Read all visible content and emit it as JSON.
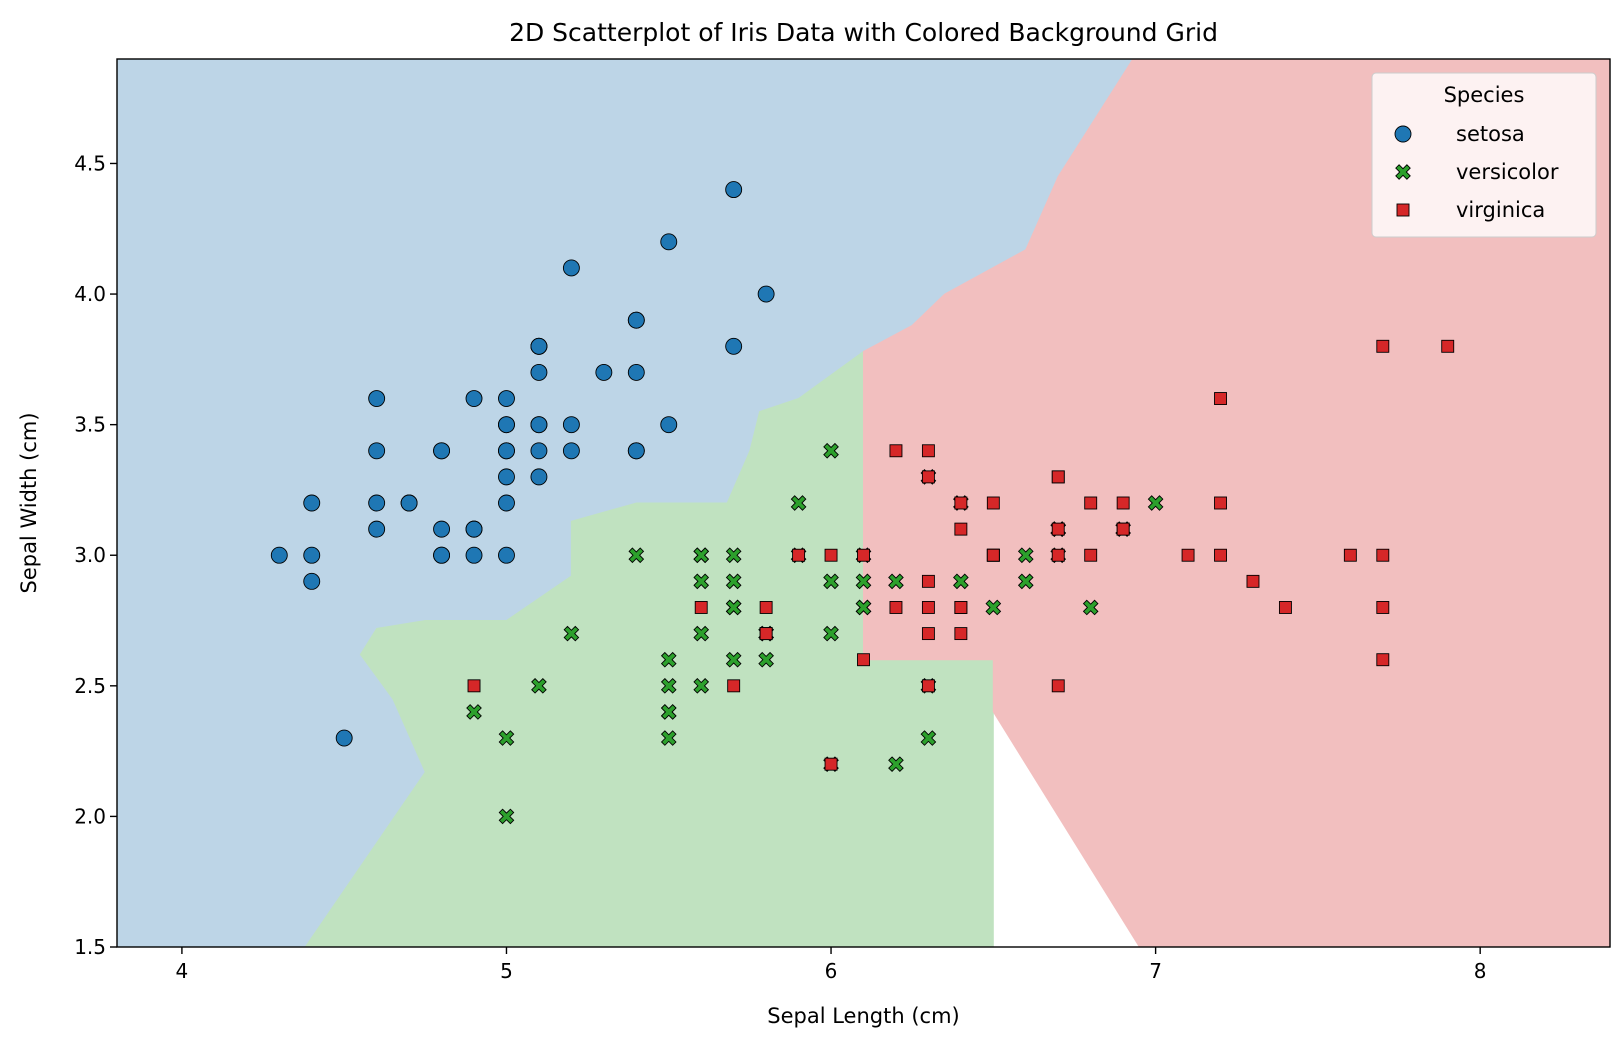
{
  "chart_data": {
    "type": "scatter",
    "title": "2D Scatterplot of Iris Data with Colored Background Grid",
    "xlabel": "Sepal Length (cm)",
    "ylabel": "Sepal Width (cm)",
    "xlim": [
      3.8,
      8.4
    ],
    "ylim": [
      1.5,
      4.9
    ],
    "xticks": [
      4,
      5,
      6,
      7,
      8
    ],
    "xtick_labels": [
      "4",
      "5",
      "6",
      "7",
      "8"
    ],
    "yticks": [
      1.5,
      2.0,
      2.5,
      3.0,
      3.5,
      4.0,
      4.5
    ],
    "ytick_labels": [
      "1.5",
      "2.0",
      "2.5",
      "3.0",
      "3.5",
      "4.0",
      "4.5"
    ],
    "grid": false,
    "legend": {
      "title": "Species",
      "placement": "top-right"
    },
    "background_regions": [
      {
        "class": "setosa",
        "color": "#bdd5e7",
        "polygon": [
          [
            3.8,
            1.5
          ],
          [
            3.8,
            4.9
          ],
          [
            6.93,
            4.9
          ],
          [
            6.7,
            4.45
          ],
          [
            6.6,
            4.17
          ],
          [
            6.35,
            4.0
          ],
          [
            6.25,
            3.88
          ],
          [
            6.1,
            3.78
          ],
          [
            5.9,
            3.6
          ],
          [
            5.78,
            3.55
          ],
          [
            5.75,
            3.4
          ],
          [
            5.68,
            3.2
          ],
          [
            5.4,
            3.2
          ],
          [
            5.2,
            3.13
          ],
          [
            5.2,
            2.92
          ],
          [
            5.0,
            2.75
          ],
          [
            4.75,
            2.75
          ],
          [
            4.6,
            2.72
          ],
          [
            4.55,
            2.62
          ],
          [
            4.65,
            2.45
          ],
          [
            4.75,
            2.17
          ],
          [
            4.38,
            1.5
          ]
        ]
      },
      {
        "class": "versicolor",
        "color": "#c0e2c0",
        "polygon": [
          [
            4.38,
            1.5
          ],
          [
            4.75,
            2.17
          ],
          [
            4.65,
            2.45
          ],
          [
            4.55,
            2.62
          ],
          [
            4.6,
            2.72
          ],
          [
            4.75,
            2.75
          ],
          [
            5.0,
            2.75
          ],
          [
            5.2,
            2.92
          ],
          [
            5.2,
            3.13
          ],
          [
            5.4,
            3.2
          ],
          [
            5.68,
            3.2
          ],
          [
            5.75,
            3.4
          ],
          [
            5.78,
            3.55
          ],
          [
            5.9,
            3.6
          ],
          [
            6.1,
            3.78
          ],
          [
            6.1,
            2.6
          ],
          [
            6.5,
            2.6
          ],
          [
            6.5,
            1.5
          ]
        ]
      },
      {
        "class": "virginica",
        "color": "#f2bfbf",
        "polygon": [
          [
            6.1,
            3.78
          ],
          [
            6.25,
            3.88
          ],
          [
            6.35,
            4.0
          ],
          [
            6.6,
            4.17
          ],
          [
            6.7,
            4.45
          ],
          [
            6.93,
            4.9
          ],
          [
            8.4,
            4.9
          ],
          [
            8.4,
            1.5
          ],
          [
            6.95,
            1.5
          ],
          [
            6.5,
            2.4
          ],
          [
            6.5,
            2.6
          ],
          [
            6.1,
            2.6
          ]
        ]
      }
    ],
    "series": [
      {
        "name": "setosa",
        "marker": "circle",
        "color": "#1f77b4",
        "points": [
          [
            5.1,
            3.5
          ],
          [
            4.9,
            3.0
          ],
          [
            4.7,
            3.2
          ],
          [
            4.6,
            3.1
          ],
          [
            5.0,
            3.6
          ],
          [
            5.4,
            3.9
          ],
          [
            4.6,
            3.4
          ],
          [
            5.0,
            3.4
          ],
          [
            4.4,
            2.9
          ],
          [
            4.9,
            3.1
          ],
          [
            5.4,
            3.7
          ],
          [
            4.8,
            3.4
          ],
          [
            4.8,
            3.0
          ],
          [
            4.3,
            3.0
          ],
          [
            5.8,
            4.0
          ],
          [
            5.7,
            4.4
          ],
          [
            5.4,
            3.9
          ],
          [
            5.1,
            3.5
          ],
          [
            5.7,
            3.8
          ],
          [
            5.1,
            3.8
          ],
          [
            5.4,
            3.4
          ],
          [
            5.1,
            3.7
          ],
          [
            4.6,
            3.6
          ],
          [
            5.1,
            3.3
          ],
          [
            4.8,
            3.4
          ],
          [
            5.0,
            3.0
          ],
          [
            5.0,
            3.4
          ],
          [
            5.2,
            3.5
          ],
          [
            5.2,
            3.4
          ],
          [
            4.7,
            3.2
          ],
          [
            4.8,
            3.1
          ],
          [
            5.4,
            3.4
          ],
          [
            5.2,
            4.1
          ],
          [
            5.5,
            4.2
          ],
          [
            4.9,
            3.1
          ],
          [
            5.0,
            3.2
          ],
          [
            5.5,
            3.5
          ],
          [
            4.9,
            3.6
          ],
          [
            4.4,
            3.0
          ],
          [
            5.1,
            3.4
          ],
          [
            5.0,
            3.5
          ],
          [
            4.5,
            2.3
          ],
          [
            4.4,
            3.2
          ],
          [
            5.0,
            3.5
          ],
          [
            5.1,
            3.8
          ],
          [
            4.8,
            3.0
          ],
          [
            5.1,
            3.8
          ],
          [
            4.6,
            3.2
          ],
          [
            5.3,
            3.7
          ],
          [
            5.0,
            3.3
          ]
        ]
      },
      {
        "name": "versicolor",
        "marker": "x",
        "color": "#2ca02c",
        "points": [
          [
            7.0,
            3.2
          ],
          [
            6.4,
            3.2
          ],
          [
            6.9,
            3.1
          ],
          [
            5.5,
            2.3
          ],
          [
            6.5,
            2.8
          ],
          [
            5.7,
            2.8
          ],
          [
            6.3,
            3.3
          ],
          [
            4.9,
            2.4
          ],
          [
            6.6,
            2.9
          ],
          [
            5.2,
            2.7
          ],
          [
            5.0,
            2.0
          ],
          [
            5.9,
            3.0
          ],
          [
            6.0,
            2.2
          ],
          [
            6.1,
            2.9
          ],
          [
            5.6,
            2.9
          ],
          [
            6.7,
            3.1
          ],
          [
            5.6,
            3.0
          ],
          [
            5.8,
            2.7
          ],
          [
            6.2,
            2.2
          ],
          [
            5.6,
            2.5
          ],
          [
            5.9,
            3.2
          ],
          [
            6.1,
            2.8
          ],
          [
            6.3,
            2.5
          ],
          [
            6.1,
            2.8
          ],
          [
            6.4,
            2.9
          ],
          [
            6.6,
            3.0
          ],
          [
            6.8,
            2.8
          ],
          [
            6.7,
            3.0
          ],
          [
            6.0,
            2.9
          ],
          [
            5.7,
            2.6
          ],
          [
            5.5,
            2.4
          ],
          [
            5.5,
            2.4
          ],
          [
            5.8,
            2.7
          ],
          [
            6.0,
            2.7
          ],
          [
            5.4,
            3.0
          ],
          [
            6.0,
            3.4
          ],
          [
            6.7,
            3.1
          ],
          [
            6.3,
            2.3
          ],
          [
            5.6,
            3.0
          ],
          [
            5.5,
            2.5
          ],
          [
            5.5,
            2.6
          ],
          [
            6.1,
            3.0
          ],
          [
            5.8,
            2.6
          ],
          [
            5.0,
            2.3
          ],
          [
            5.6,
            2.7
          ],
          [
            5.7,
            3.0
          ],
          [
            5.7,
            2.9
          ],
          [
            6.2,
            2.9
          ],
          [
            5.1,
            2.5
          ],
          [
            5.7,
            2.8
          ]
        ]
      },
      {
        "name": "virginica",
        "marker": "square",
        "color": "#d62728",
        "points": [
          [
            6.3,
            3.3
          ],
          [
            5.8,
            2.7
          ],
          [
            7.1,
            3.0
          ],
          [
            6.3,
            2.9
          ],
          [
            6.5,
            3.0
          ],
          [
            7.6,
            3.0
          ],
          [
            4.9,
            2.5
          ],
          [
            7.3,
            2.9
          ],
          [
            6.7,
            2.5
          ],
          [
            7.2,
            3.6
          ],
          [
            6.5,
            3.2
          ],
          [
            6.4,
            2.7
          ],
          [
            6.8,
            3.0
          ],
          [
            5.7,
            2.5
          ],
          [
            5.8,
            2.8
          ],
          [
            6.4,
            3.2
          ],
          [
            6.5,
            3.0
          ],
          [
            7.7,
            3.8
          ],
          [
            7.7,
            2.6
          ],
          [
            6.0,
            2.2
          ],
          [
            6.9,
            3.2
          ],
          [
            5.6,
            2.8
          ],
          [
            7.7,
            2.8
          ],
          [
            6.3,
            2.7
          ],
          [
            6.7,
            3.3
          ],
          [
            7.2,
            3.2
          ],
          [
            6.2,
            2.8
          ],
          [
            6.1,
            3.0
          ],
          [
            6.4,
            2.8
          ],
          [
            7.2,
            3.0
          ],
          [
            7.4,
            2.8
          ],
          [
            7.9,
            3.8
          ],
          [
            6.4,
            2.8
          ],
          [
            6.3,
            2.8
          ],
          [
            6.1,
            2.6
          ],
          [
            7.7,
            3.0
          ],
          [
            6.3,
            3.4
          ],
          [
            6.4,
            3.1
          ],
          [
            6.0,
            3.0
          ],
          [
            6.9,
            3.1
          ],
          [
            6.7,
            3.1
          ],
          [
            6.9,
            3.1
          ],
          [
            5.8,
            2.7
          ],
          [
            6.8,
            3.2
          ],
          [
            6.7,
            3.3
          ],
          [
            6.7,
            3.0
          ],
          [
            6.3,
            2.5
          ],
          [
            6.5,
            3.0
          ],
          [
            6.2,
            3.4
          ],
          [
            5.9,
            3.0
          ]
        ]
      }
    ]
  }
}
